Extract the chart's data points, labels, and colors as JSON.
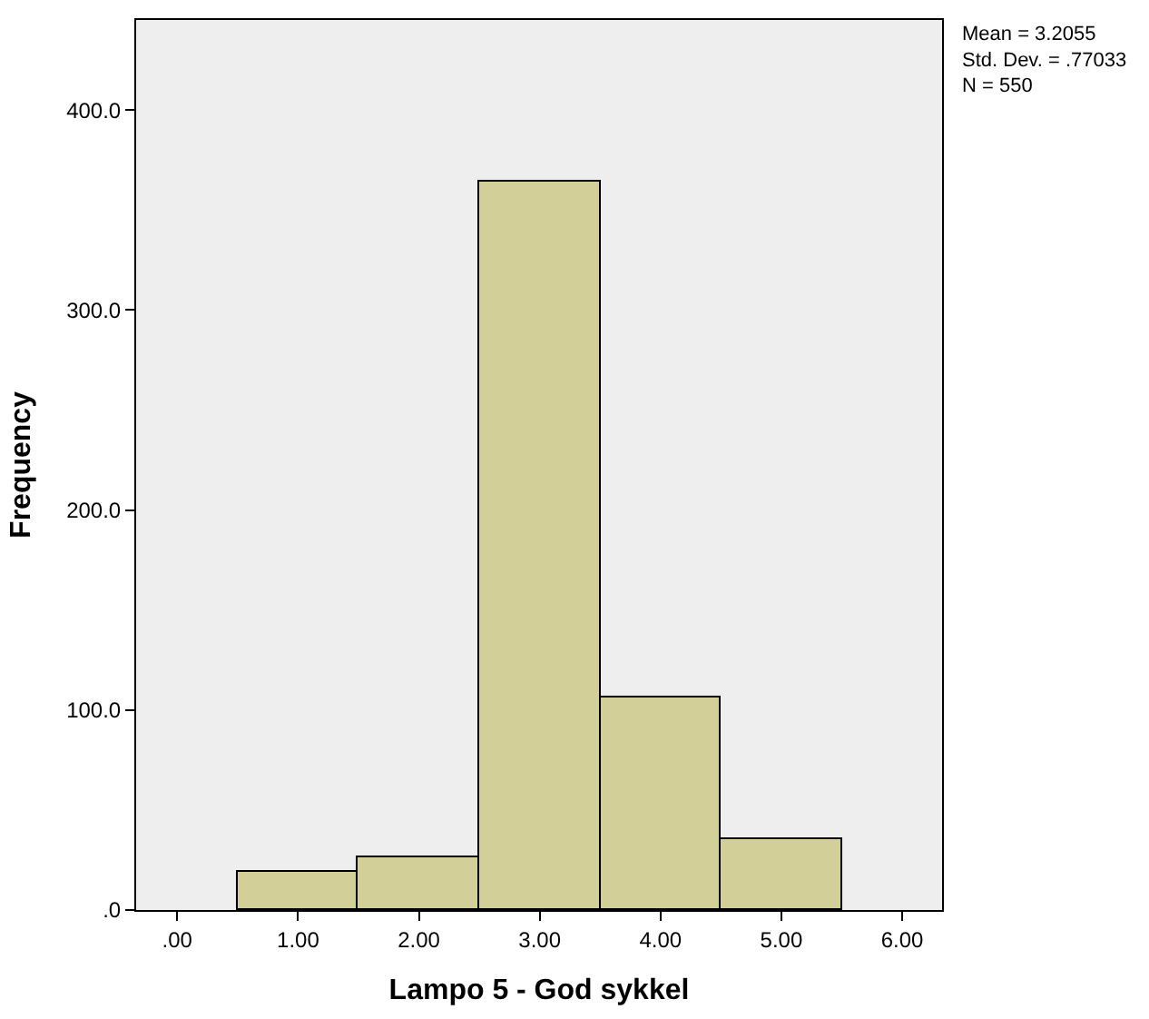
{
  "chart_data": {
    "type": "histogram",
    "bins": [
      0.5,
      1.5,
      2.5,
      3.5,
      4.5,
      5.5
    ],
    "values": [
      19,
      26,
      364,
      106,
      35
    ],
    "color": "#d3cf99",
    "xlabel": "Lampo 5 - God sykkel",
    "ylabel": "Frequency",
    "xlim": [
      -0.34,
      6.33
    ],
    "ylim": [
      0,
      445
    ],
    "xticks": [
      {
        "value": 0,
        "label": ".00"
      },
      {
        "value": 1,
        "label": "1.00"
      },
      {
        "value": 2,
        "label": "2.00"
      },
      {
        "value": 3,
        "label": "3.00"
      },
      {
        "value": 4,
        "label": "4.00"
      },
      {
        "value": 5,
        "label": "5.00"
      },
      {
        "value": 6,
        "label": "6.00"
      }
    ],
    "yticks": [
      {
        "value": 0,
        "label": ".0"
      },
      {
        "value": 100,
        "label": "100.0"
      },
      {
        "value": 200,
        "label": "200.0"
      },
      {
        "value": 300,
        "label": "300.0"
      },
      {
        "value": 400,
        "label": "400.0"
      }
    ],
    "annotations": [
      "Mean = 3.2055",
      "Std. Dev. = .77033",
      "N = 550"
    ],
    "grid": false
  }
}
